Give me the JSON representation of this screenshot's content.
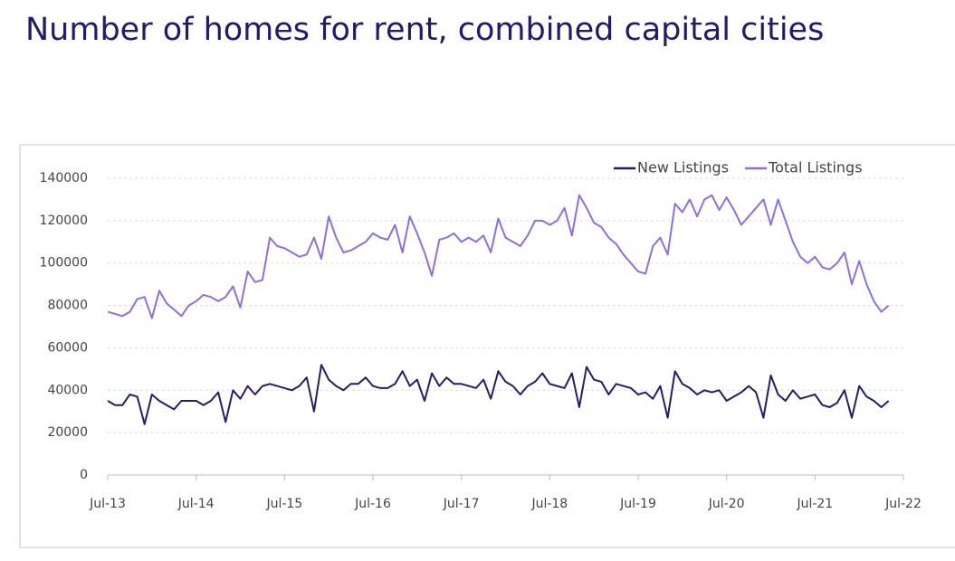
{
  "chart_data": {
    "type": "line",
    "title": "Number of homes for rent, combined capital cities",
    "categories": [
      "Jul-13",
      null,
      null,
      null,
      null,
      null,
      null,
      null,
      null,
      null,
      null,
      null,
      "Jul-14",
      null,
      null,
      null,
      null,
      null,
      null,
      null,
      null,
      null,
      null,
      null,
      "Jul-15",
      null,
      null,
      null,
      null,
      null,
      null,
      null,
      null,
      null,
      null,
      null,
      "Jul-16",
      null,
      null,
      null,
      null,
      null,
      null,
      null,
      null,
      null,
      null,
      null,
      "Jul-17",
      null,
      null,
      null,
      null,
      null,
      null,
      null,
      null,
      null,
      null,
      null,
      "Jul-18",
      null,
      null,
      null,
      null,
      null,
      null,
      null,
      null,
      null,
      null,
      null,
      "Jul-19",
      null,
      null,
      null,
      null,
      null,
      null,
      null,
      null,
      null,
      null,
      null,
      "Jul-20",
      null,
      null,
      null,
      null,
      null,
      null,
      null,
      null,
      null,
      null,
      null,
      "Jul-21",
      null,
      null,
      null,
      null,
      null,
      null,
      null,
      null,
      null,
      null,
      null,
      "Jul-22"
    ],
    "series": [
      {
        "name": "New Listings",
        "color": "#231d6b",
        "values": [
          35000,
          33000,
          33000,
          38000,
          37000,
          24000,
          38000,
          35000,
          33000,
          31000,
          35000,
          35000,
          35000,
          33000,
          35000,
          39000,
          25000,
          40000,
          36000,
          42000,
          38000,
          42000,
          43000,
          42000,
          41000,
          40000,
          42000,
          46000,
          30000,
          52000,
          45000,
          42000,
          40000,
          43000,
          43000,
          46000,
          42000,
          41000,
          41000,
          43000,
          49000,
          42000,
          45000,
          35000,
          48000,
          42000,
          46000,
          43000,
          43000,
          42000,
          41000,
          45000,
          36000,
          49000,
          44000,
          42000,
          38000,
          42000,
          44000,
          48000,
          43000,
          42000,
          41000,
          48000,
          32000,
          51000,
          45000,
          44000,
          38000,
          43000,
          42000,
          41000,
          38000,
          39000,
          36000,
          42000,
          27000,
          49000,
          43000,
          41000,
          38000,
          40000,
          39000,
          40000,
          35000,
          37000,
          39000,
          42000,
          39000,
          27000,
          47000,
          38000,
          35000,
          40000,
          36000,
          37000,
          38000,
          33000,
          32000,
          34000,
          40000,
          27000,
          42000,
          37000,
          35000,
          32000,
          35000,
          null,
          null
        ]
      },
      {
        "name": "Total Listings",
        "color": "#8d6fe0",
        "values": [
          77000,
          76000,
          75000,
          77000,
          83000,
          84000,
          74000,
          87000,
          81000,
          78000,
          75000,
          80000,
          82000,
          85000,
          84000,
          82000,
          84000,
          89000,
          79000,
          96000,
          91000,
          92000,
          112000,
          108000,
          107000,
          105000,
          103000,
          104000,
          112000,
          102000,
          122000,
          112000,
          105000,
          106000,
          108000,
          110000,
          114000,
          112000,
          111000,
          118000,
          105000,
          122000,
          114000,
          105000,
          94000,
          111000,
          112000,
          114000,
          110000,
          112000,
          110000,
          113000,
          105000,
          121000,
          112000,
          110000,
          108000,
          113000,
          120000,
          120000,
          118000,
          120000,
          126000,
          113000,
          132000,
          126000,
          119000,
          117000,
          112000,
          109000,
          104000,
          100000,
          96000,
          95000,
          108000,
          112000,
          104000,
          128000,
          124000,
          130000,
          122000,
          130000,
          132000,
          125000,
          131000,
          125000,
          118000,
          122000,
          126000,
          130000,
          118000,
          130000,
          120000,
          110000,
          103000,
          100000,
          103000,
          98000,
          97000,
          100000,
          105000,
          90000,
          101000,
          90000,
          82000,
          77000,
          80000,
          null,
          null
        ]
      }
    ],
    "ylim": [
      0,
      140000
    ],
    "yticks": [
      0,
      20000,
      40000,
      60000,
      80000,
      100000,
      120000,
      140000
    ],
    "grid": true,
    "legend": "top-right"
  }
}
